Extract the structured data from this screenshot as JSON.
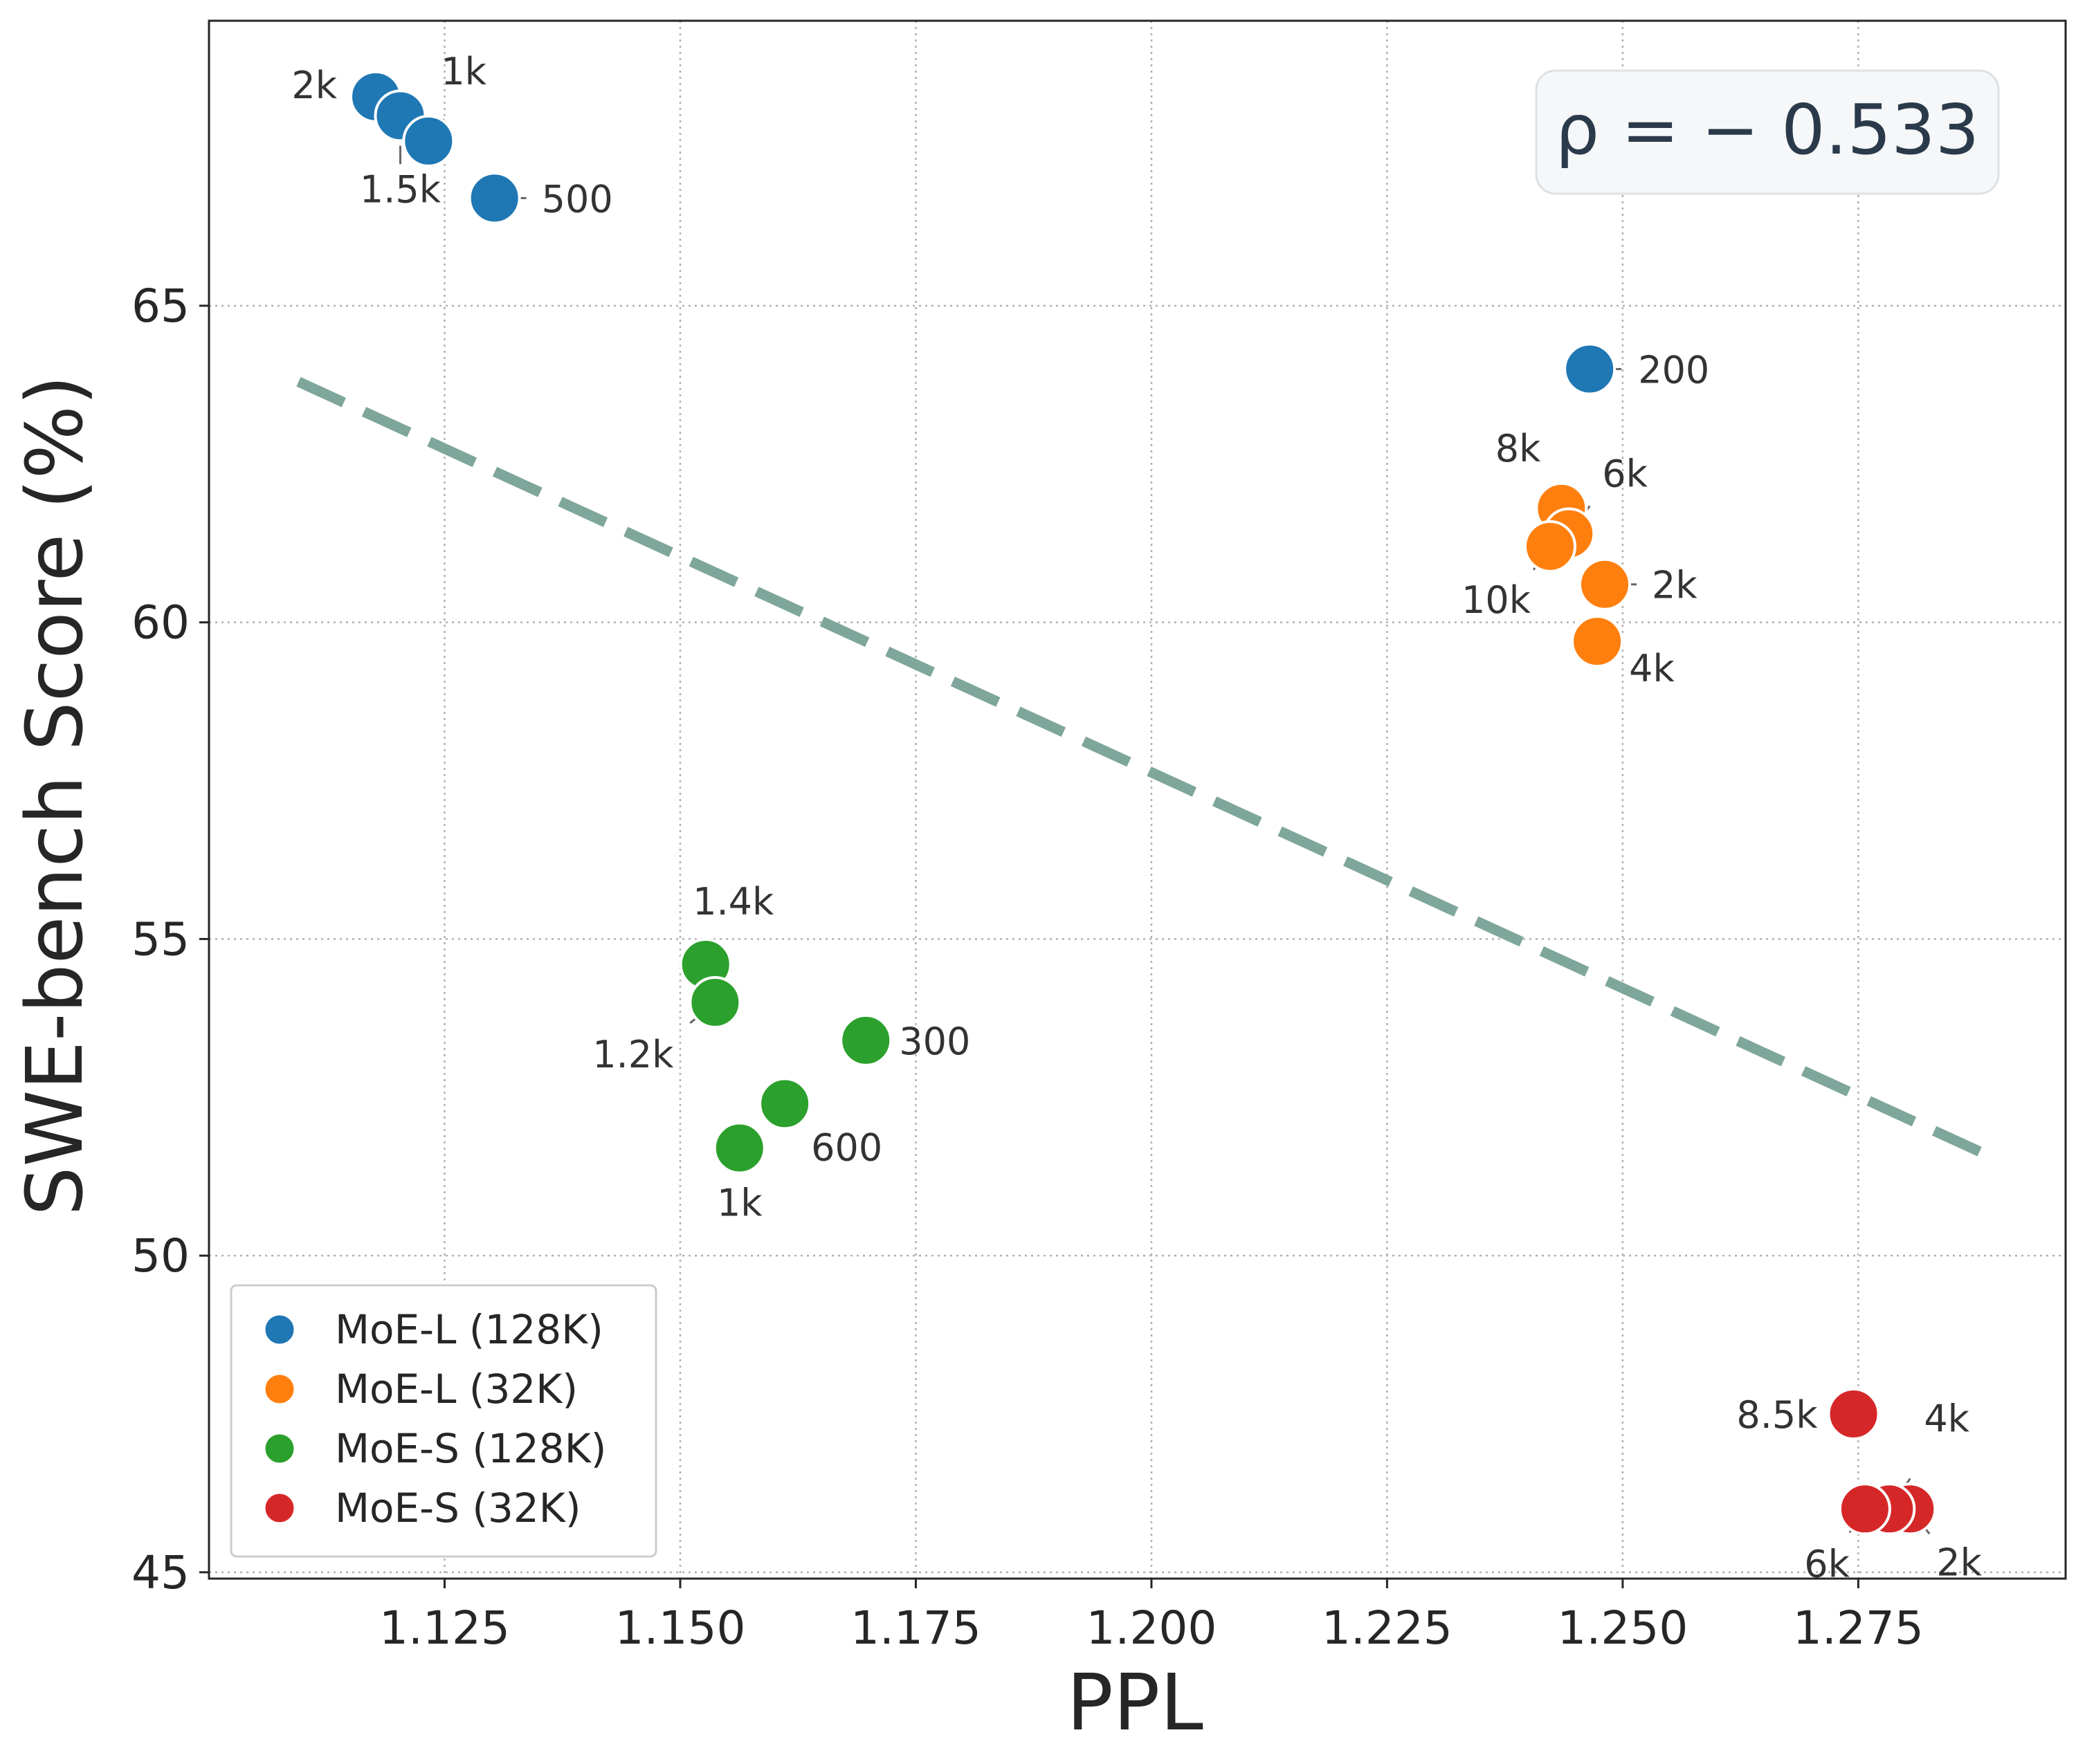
{
  "chart_data": {
    "type": "scatter",
    "title": "",
    "xlabel": "PPL",
    "ylabel": "SWE-bench Score (%)",
    "xlim": [
      1.1,
      1.297
    ],
    "ylim": [
      44.9,
      69.5
    ],
    "xticks": [
      1.125,
      1.15,
      1.175,
      1.2,
      1.225,
      1.25,
      1.275
    ],
    "xtick_labels": [
      "1.125",
      "1.150",
      "1.175",
      "1.200",
      "1.225",
      "1.250",
      "1.275"
    ],
    "yticks": [
      45,
      50,
      55,
      60,
      65
    ],
    "ytick_labels": [
      "45",
      "50",
      "55",
      "60",
      "65"
    ],
    "grid": true,
    "legend_position": "bottom-left",
    "annotation": "ρ = − 0.533",
    "trend_line": {
      "x": [
        1.1095,
        1.2885
      ],
      "y": [
        63.8,
        51.6
      ],
      "color": "#7fa69b",
      "style": "dashed"
    },
    "series": [
      {
        "name": "MoE-L (128K)",
        "color": "#1f77b4",
        "points": [
          {
            "x": 1.1177,
            "y": 68.3,
            "label": "2k"
          },
          {
            "x": 1.1203,
            "y": 68.0,
            "label": "1.5k"
          },
          {
            "x": 1.1233,
            "y": 67.6,
            "label": "1k"
          },
          {
            "x": 1.1303,
            "y": 66.7,
            "label": "500"
          },
          {
            "x": 1.2465,
            "y": 64.0,
            "label": "200"
          }
        ]
      },
      {
        "name": "MoE-L (32K)",
        "color": "#ff7f0e",
        "points": [
          {
            "x": 1.2435,
            "y": 61.8,
            "label": "8k"
          },
          {
            "x": 1.2443,
            "y": 61.4,
            "label": "6k"
          },
          {
            "x": 1.2423,
            "y": 61.2,
            "label": "10k"
          },
          {
            "x": 1.2481,
            "y": 60.6,
            "label": "2k"
          },
          {
            "x": 1.2473,
            "y": 59.7,
            "label": "4k"
          }
        ]
      },
      {
        "name": "MoE-S (128K)",
        "color": "#2ca02c",
        "points": [
          {
            "x": 1.1527,
            "y": 54.6,
            "label": "1.4k"
          },
          {
            "x": 1.1537,
            "y": 54.0,
            "label": "1.2k"
          },
          {
            "x": 1.1697,
            "y": 53.4,
            "label": "300"
          },
          {
            "x": 1.1611,
            "y": 52.4,
            "label": "600"
          },
          {
            "x": 1.1563,
            "y": 51.7,
            "label": "1k"
          }
        ]
      },
      {
        "name": "MoE-S (32K)",
        "color": "#d62728",
        "points": [
          {
            "x": 1.2745,
            "y": 47.5,
            "label": "8.5k"
          },
          {
            "x": 1.2805,
            "y": 46.0,
            "label": "2k"
          },
          {
            "x": 1.2783,
            "y": 46.0,
            "label": "4k"
          },
          {
            "x": 1.2757,
            "y": 46.0,
            "label": "6k"
          }
        ]
      }
    ]
  }
}
